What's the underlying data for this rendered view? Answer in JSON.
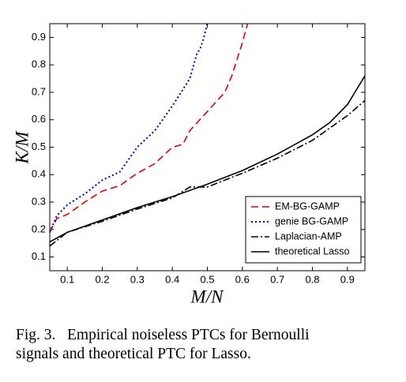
{
  "chart_data": {
    "type": "line",
    "xlabel": "M/N",
    "ylabel": "K/M",
    "xlim": [
      0.05,
      0.95
    ],
    "ylim": [
      0.05,
      0.95
    ],
    "xticks": [
      0.1,
      0.2,
      0.3,
      0.4,
      0.5,
      0.6,
      0.7,
      0.8,
      0.9
    ],
    "yticks": [
      0.1,
      0.2,
      0.3,
      0.4,
      0.5,
      0.6,
      0.7,
      0.8,
      0.9
    ],
    "grid": false,
    "legend": "lower right",
    "series": [
      {
        "name": "EM-BG-GAMP",
        "color": "#e00000",
        "dash": "dashed",
        "x": [
          0.05,
          0.07,
          0.1,
          0.15,
          0.2,
          0.25,
          0.3,
          0.35,
          0.4,
          0.43,
          0.45,
          0.5,
          0.55,
          0.57,
          0.6,
          0.615
        ],
        "values": [
          0.19,
          0.24,
          0.255,
          0.3,
          0.34,
          0.36,
          0.405,
          0.44,
          0.5,
          0.51,
          0.56,
          0.63,
          0.7,
          0.76,
          0.88,
          0.95
        ]
      },
      {
        "name": "genie BG-GAMP",
        "color": "#0000d0",
        "dash": "dotted",
        "x": [
          0.05,
          0.07,
          0.1,
          0.15,
          0.2,
          0.25,
          0.3,
          0.35,
          0.4,
          0.43,
          0.45,
          0.47,
          0.48,
          0.49,
          0.5
        ],
        "values": [
          0.19,
          0.25,
          0.29,
          0.33,
          0.38,
          0.41,
          0.5,
          0.56,
          0.65,
          0.71,
          0.75,
          0.84,
          0.86,
          0.9,
          0.95
        ]
      },
      {
        "name": "Laplacian-AMP",
        "color": "#000000",
        "dash": "dashdot",
        "x": [
          0.05,
          0.1,
          0.2,
          0.3,
          0.4,
          0.45,
          0.5,
          0.6,
          0.7,
          0.8,
          0.9,
          0.95
        ],
        "values": [
          0.14,
          0.19,
          0.23,
          0.275,
          0.315,
          0.355,
          0.355,
          0.405,
          0.46,
          0.525,
          0.615,
          0.67
        ]
      },
      {
        "name": "theoretical Lasso",
        "color": "#000000",
        "dash": "solid",
        "x": [
          0.05,
          0.1,
          0.2,
          0.3,
          0.4,
          0.5,
          0.6,
          0.7,
          0.8,
          0.85,
          0.9,
          0.95
        ],
        "values": [
          0.155,
          0.19,
          0.235,
          0.28,
          0.32,
          0.365,
          0.415,
          0.475,
          0.545,
          0.59,
          0.655,
          0.76
        ]
      }
    ]
  },
  "caption": [
    "Fig. 3.   Empirical noiseless PTCs for Bernoulli",
    "signals and theoretical PTC for Lasso."
  ]
}
